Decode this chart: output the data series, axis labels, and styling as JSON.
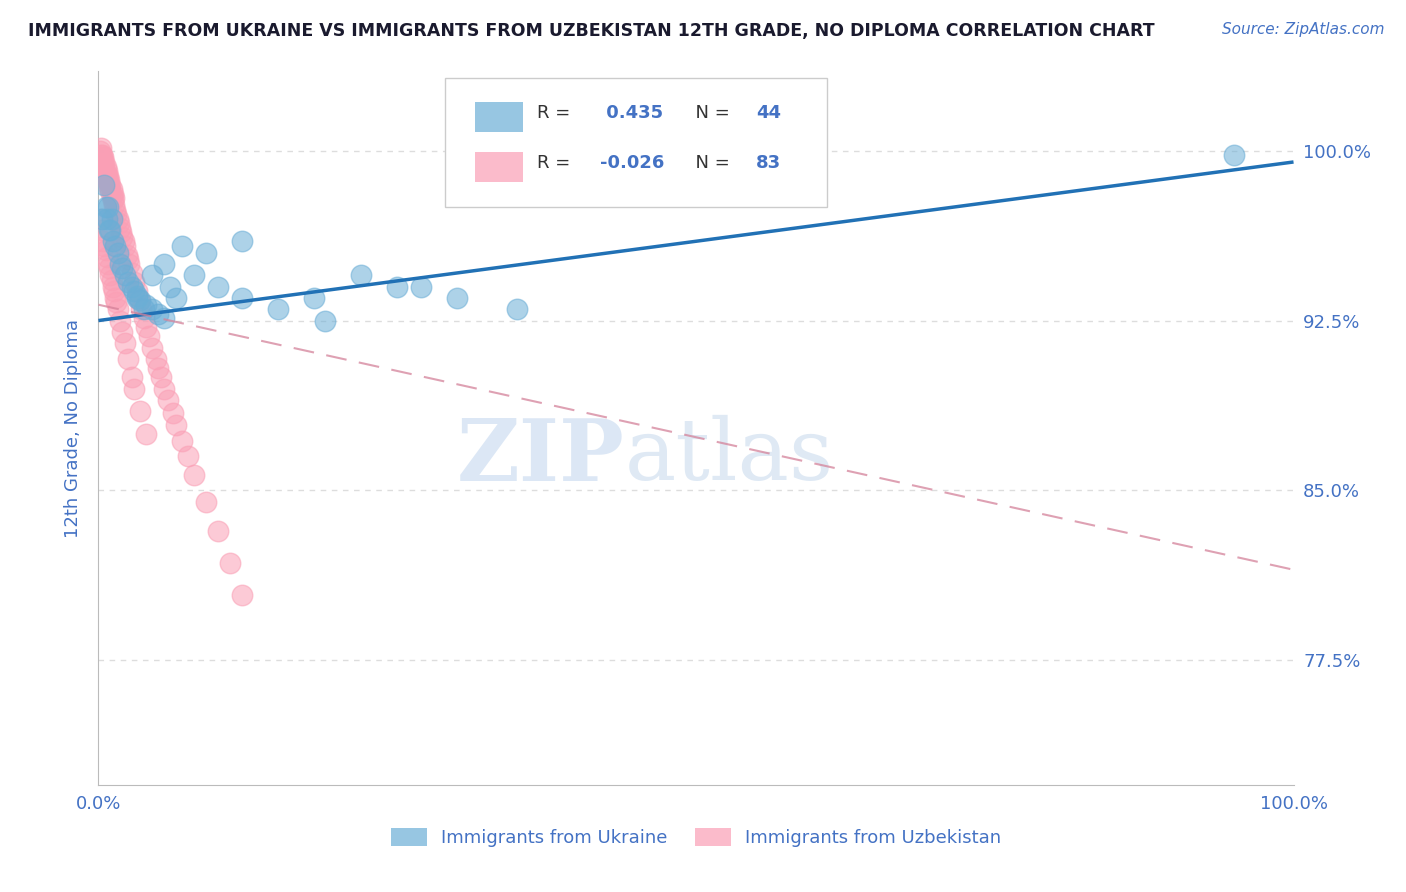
{
  "title": "IMMIGRANTS FROM UKRAINE VS IMMIGRANTS FROM UZBEKISTAN 12TH GRADE, NO DIPLOMA CORRELATION CHART",
  "source": "Source: ZipAtlas.com",
  "ylabel": "12th Grade, No Diploma",
  "legend_ukraine": "Immigrants from Ukraine",
  "legend_uzbekistan": "Immigrants from Uzbekistan",
  "R_ukraine": 0.435,
  "N_ukraine": 44,
  "R_uzbekistan": -0.026,
  "N_uzbekistan": 83,
  "ukraine_color": "#6baed6",
  "uzbekistan_color": "#fa9fb5",
  "ukraine_line_color": "#2171b5",
  "uzbekistan_line_color": "#d4829a",
  "background_color": "#ffffff",
  "grid_color": "#dddddd",
  "axis_label_color": "#4472c4",
  "title_color": "#1a1a2e",
  "source_color": "#4472c4",
  "watermark_color": "#ccdcef",
  "xlim": [
    0.0,
    1.0
  ],
  "ylim": [
    0.72,
    1.035
  ],
  "ytick_vals": [
    0.775,
    0.85,
    0.925,
    1.0
  ],
  "ytick_labels": [
    "77.5%",
    "85.0%",
    "92.5%",
    "100.0%"
  ],
  "xtick_vals": [
    0.0,
    1.0
  ],
  "xtick_labels": [
    "0.0%",
    "100.0%"
  ],
  "ukraine_x": [
    0.003,
    0.005,
    0.006,
    0.007,
    0.008,
    0.009,
    0.01,
    0.011,
    0.012,
    0.014,
    0.016,
    0.018,
    0.02,
    0.022,
    0.025,
    0.028,
    0.03,
    0.032,
    0.035,
    0.04,
    0.045,
    0.05,
    0.055,
    0.065,
    0.08,
    0.1,
    0.12,
    0.15,
    0.18,
    0.22,
    0.19,
    0.25,
    0.3,
    0.35,
    0.12,
    0.09,
    0.07,
    0.06,
    0.055,
    0.045,
    0.038,
    0.032,
    0.95,
    0.27
  ],
  "ukraine_y": [
    0.97,
    0.985,
    0.975,
    0.97,
    0.975,
    0.965,
    0.965,
    0.97,
    0.96,
    0.958,
    0.955,
    0.95,
    0.948,
    0.945,
    0.942,
    0.94,
    0.938,
    0.936,
    0.934,
    0.932,
    0.93,
    0.928,
    0.926,
    0.935,
    0.945,
    0.94,
    0.935,
    0.93,
    0.935,
    0.945,
    0.925,
    0.94,
    0.935,
    0.93,
    0.96,
    0.955,
    0.958,
    0.94,
    0.95,
    0.945,
    0.93,
    0.935,
    0.998,
    0.94
  ],
  "uzbekistan_x": [
    0.001,
    0.002,
    0.002,
    0.003,
    0.003,
    0.004,
    0.004,
    0.005,
    0.005,
    0.006,
    0.006,
    0.007,
    0.007,
    0.008,
    0.008,
    0.009,
    0.009,
    0.01,
    0.01,
    0.011,
    0.011,
    0.012,
    0.012,
    0.013,
    0.013,
    0.014,
    0.015,
    0.016,
    0.017,
    0.018,
    0.019,
    0.02,
    0.021,
    0.022,
    0.024,
    0.025,
    0.026,
    0.028,
    0.03,
    0.032,
    0.034,
    0.036,
    0.038,
    0.04,
    0.042,
    0.045,
    0.048,
    0.05,
    0.052,
    0.055,
    0.058,
    0.062,
    0.065,
    0.07,
    0.075,
    0.08,
    0.09,
    0.1,
    0.11,
    0.12,
    0.002,
    0.003,
    0.004,
    0.005,
    0.006,
    0.007,
    0.008,
    0.009,
    0.01,
    0.011,
    0.012,
    0.013,
    0.014,
    0.015,
    0.016,
    0.018,
    0.02,
    0.022,
    0.025,
    0.028,
    0.03,
    0.035,
    0.04
  ],
  "uzbekistan_y": [
    1.0,
    0.998,
    1.001,
    0.998,
    0.996,
    0.994,
    0.997,
    0.992,
    0.995,
    0.99,
    0.993,
    0.988,
    0.991,
    0.986,
    0.989,
    0.984,
    0.987,
    0.982,
    0.985,
    0.98,
    0.983,
    0.978,
    0.981,
    0.976,
    0.979,
    0.974,
    0.972,
    0.97,
    0.968,
    0.966,
    0.964,
    0.962,
    0.96,
    0.958,
    0.954,
    0.952,
    0.95,
    0.946,
    0.942,
    0.938,
    0.934,
    0.93,
    0.926,
    0.922,
    0.918,
    0.913,
    0.908,
    0.904,
    0.9,
    0.895,
    0.89,
    0.884,
    0.879,
    0.872,
    0.865,
    0.857,
    0.845,
    0.832,
    0.818,
    0.804,
    0.97,
    0.965,
    0.96,
    0.958,
    0.956,
    0.953,
    0.95,
    0.948,
    0.945,
    0.943,
    0.94,
    0.938,
    0.935,
    0.933,
    0.93,
    0.925,
    0.92,
    0.915,
    0.908,
    0.9,
    0.895,
    0.885,
    0.875
  ],
  "ukraine_trend_x": [
    0.0,
    1.0
  ],
  "ukraine_trend_y": [
    0.925,
    0.995
  ],
  "uzbekistan_trend_x": [
    0.0,
    1.0
  ],
  "uzbekistan_trend_y": [
    0.932,
    0.815
  ],
  "watermark_zip": "ZIP",
  "watermark_atlas": "atlas"
}
